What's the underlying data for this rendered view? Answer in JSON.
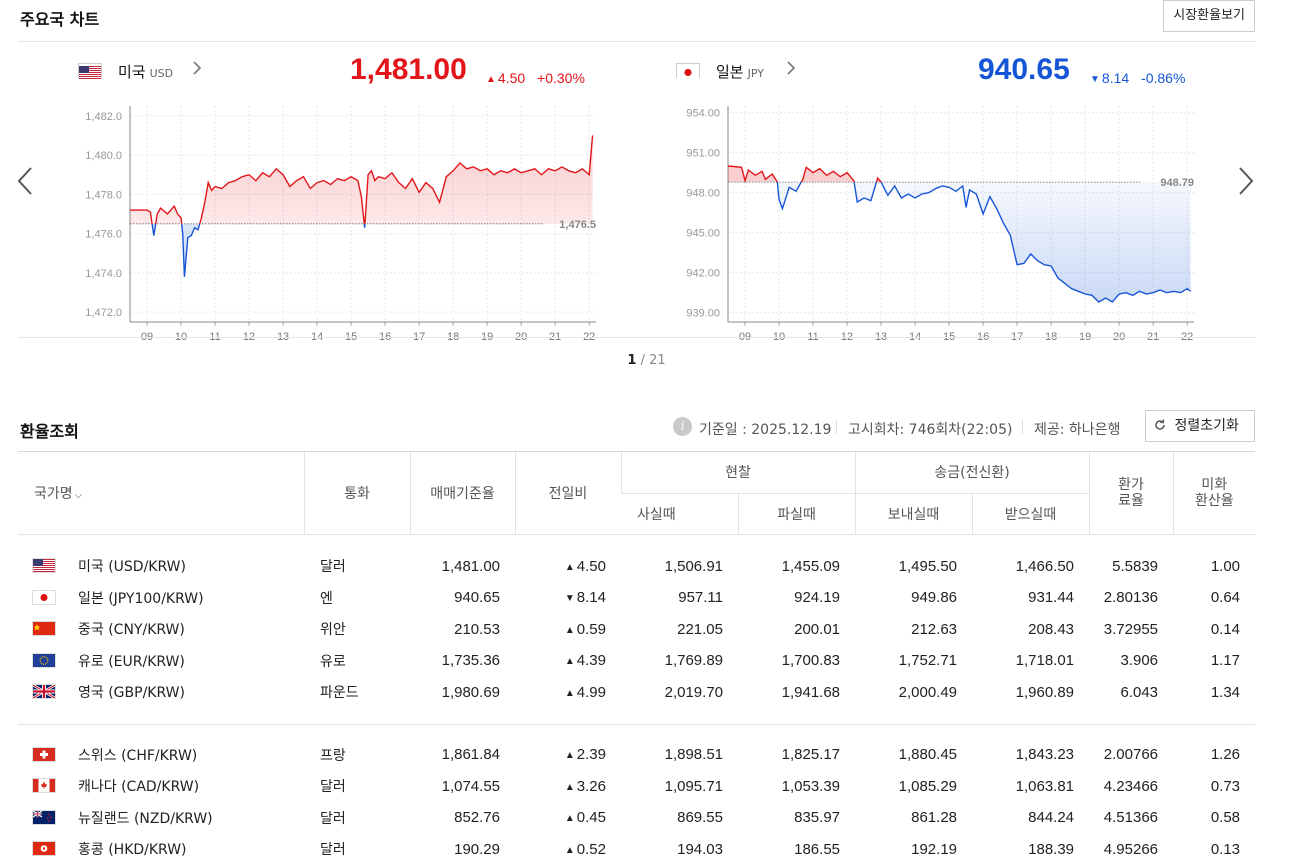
{
  "colors": {
    "up": "#e2161a",
    "down": "#1656d6",
    "grid": "#e9e9e9"
  },
  "chart_section": {
    "title": "주요국 차트",
    "market_button": "시장환율보기",
    "prev_arrow": "prev-arrow-icon",
    "next_arrow": "next-arrow-icon",
    "pager": {
      "current": "1",
      "total": "/ 21"
    }
  },
  "chart_data": [
    {
      "type": "line",
      "name": "미국",
      "code": "USD",
      "price": "1,481.00",
      "change": "4.50",
      "change_pct": "+0.30%",
      "direction": "up",
      "baseline": 1476.5,
      "baseline_label": "1,476.5",
      "ylim": [
        1471.5,
        1482.5
      ],
      "yticks": [
        1472.0,
        1474.0,
        1476.0,
        1478.0,
        1480.0,
        1482.0
      ],
      "ytick_labels": [
        "1,472.0",
        "1,474.0",
        "1,476.0",
        "1,478.0",
        "1,480.0",
        "1,482.0"
      ],
      "xlim": [
        8.5,
        22.2
      ],
      "xticks": [
        9,
        10,
        11,
        12,
        13,
        14,
        15,
        16,
        17,
        18,
        19,
        20,
        21,
        22
      ],
      "xtick_labels": [
        "09",
        "10",
        "11",
        "12",
        "13",
        "14",
        "15",
        "16",
        "17",
        "18",
        "19",
        "20",
        "21",
        "22"
      ],
      "x": [
        8.5,
        9.0,
        9.1,
        9.2,
        9.3,
        9.4,
        9.6,
        9.8,
        9.9,
        10.0,
        10.05,
        10.1,
        10.2,
        10.3,
        10.4,
        10.5,
        10.6,
        10.7,
        10.8,
        10.9,
        11.0,
        11.2,
        11.4,
        11.6,
        11.8,
        12.0,
        12.2,
        12.4,
        12.6,
        12.8,
        13.0,
        13.2,
        13.4,
        13.6,
        13.8,
        14.0,
        14.2,
        14.4,
        14.6,
        14.8,
        15.0,
        15.2,
        15.3,
        15.4,
        15.5,
        15.6,
        15.7,
        15.8,
        16.0,
        16.2,
        16.4,
        16.6,
        16.8,
        17.0,
        17.2,
        17.4,
        17.6,
        17.8,
        18.0,
        18.2,
        18.4,
        18.6,
        18.8,
        19.0,
        19.2,
        19.4,
        19.6,
        19.8,
        20.0,
        20.2,
        20.4,
        20.6,
        20.8,
        21.0,
        21.2,
        21.4,
        21.6,
        21.8,
        22.0,
        22.1
      ],
      "y": [
        1477.2,
        1477.2,
        1477.1,
        1475.9,
        1477.0,
        1477.3,
        1477.0,
        1477.4,
        1477.0,
        1476.8,
        1476.0,
        1473.8,
        1475.8,
        1475.9,
        1476.3,
        1476.2,
        1476.8,
        1477.6,
        1478.6,
        1478.2,
        1478.4,
        1478.3,
        1478.6,
        1478.7,
        1478.9,
        1479.0,
        1478.7,
        1479.1,
        1478.9,
        1479.3,
        1479.0,
        1478.4,
        1478.7,
        1478.9,
        1478.3,
        1478.6,
        1478.7,
        1478.5,
        1478.8,
        1478.7,
        1478.9,
        1478.7,
        1477.9,
        1476.3,
        1479.0,
        1479.2,
        1478.7,
        1478.9,
        1478.8,
        1479.1,
        1478.6,
        1478.3,
        1478.8,
        1478.1,
        1478.6,
        1478.3,
        1477.6,
        1478.9,
        1479.2,
        1479.6,
        1479.3,
        1479.4,
        1479.2,
        1479.3,
        1479.0,
        1479.2,
        1479.1,
        1479.3,
        1479.1,
        1479.2,
        1479.3,
        1479.0,
        1479.3,
        1479.2,
        1479.4,
        1479.2,
        1479.1,
        1479.3,
        1479.0,
        1481.0
      ]
    },
    {
      "type": "line",
      "name": "일본",
      "code": "JPY",
      "price": "940.65",
      "change": "8.14",
      "change_pct": "-0.86%",
      "direction": "down",
      "baseline": 948.79,
      "baseline_label": "948.79",
      "ylim": [
        938.3,
        954.5
      ],
      "yticks": [
        939.0,
        942.0,
        945.0,
        948.0,
        951.0,
        954.0
      ],
      "ytick_labels": [
        "939.00",
        "942.00",
        "945.00",
        "948.00",
        "951.00",
        "954.00"
      ],
      "xlim": [
        8.5,
        22.2
      ],
      "xticks": [
        9,
        10,
        11,
        12,
        13,
        14,
        15,
        16,
        17,
        18,
        19,
        20,
        21,
        22
      ],
      "xtick_labels": [
        "09",
        "10",
        "11",
        "12",
        "13",
        "14",
        "15",
        "16",
        "17",
        "18",
        "19",
        "20",
        "21",
        "22"
      ],
      "x": [
        8.5,
        8.9,
        9.0,
        9.1,
        9.3,
        9.5,
        9.6,
        9.8,
        9.95,
        10.0,
        10.1,
        10.3,
        10.5,
        10.7,
        10.8,
        11.0,
        11.2,
        11.4,
        11.6,
        11.8,
        12.0,
        12.2,
        12.3,
        12.5,
        12.7,
        12.9,
        13.0,
        13.2,
        13.4,
        13.6,
        13.8,
        14.0,
        14.2,
        14.4,
        14.6,
        14.8,
        15.0,
        15.2,
        15.4,
        15.5,
        15.6,
        15.8,
        16.0,
        16.2,
        16.4,
        16.6,
        16.8,
        17.0,
        17.2,
        17.4,
        17.6,
        17.8,
        18.0,
        18.2,
        18.4,
        18.6,
        18.8,
        19.0,
        19.2,
        19.4,
        19.6,
        19.8,
        20.0,
        20.2,
        20.4,
        20.6,
        20.8,
        21.0,
        21.2,
        21.4,
        21.6,
        21.8,
        22.0,
        22.1
      ],
      "y": [
        950.0,
        949.9,
        948.9,
        949.7,
        949.3,
        949.6,
        949.0,
        949.4,
        948.8,
        947.5,
        946.8,
        948.4,
        948.1,
        949.0,
        949.9,
        949.5,
        949.8,
        949.3,
        949.6,
        949.2,
        949.5,
        948.9,
        947.3,
        947.6,
        947.4,
        949.1,
        948.8,
        947.8,
        948.5,
        947.6,
        947.9,
        947.6,
        947.9,
        948.0,
        948.3,
        948.5,
        948.4,
        948.1,
        948.5,
        946.9,
        948.2,
        947.9,
        946.4,
        947.7,
        946.8,
        945.7,
        944.8,
        942.6,
        942.7,
        943.4,
        942.9,
        942.6,
        942.5,
        941.6,
        941.2,
        940.8,
        940.6,
        940.4,
        940.3,
        939.8,
        940.1,
        939.8,
        940.4,
        940.5,
        940.3,
        940.6,
        940.4,
        940.5,
        940.7,
        940.5,
        940.6,
        940.5,
        940.8,
        940.6
      ]
    }
  ],
  "rate_section": {
    "title": "환율조회",
    "info_icon": "info-icon",
    "base_date": "기준일 : 2025.12.19",
    "notice": "고시회차: 746회차(22:05)",
    "provider": "제공: 하나은행",
    "reset_label": "정렬초기화",
    "reset_icon": "refresh-icon",
    "headers": {
      "country": "국가명",
      "currency": "통화",
      "base_rate": "매매기준율",
      "change": "전일비",
      "cash": "현찰",
      "cash_buy": "사실때",
      "cash_sell": "파실때",
      "wire": "송금(전신환)",
      "wire_send": "보내실때",
      "wire_receive": "받으실때",
      "exchange_fee": "환가\n료율",
      "usd_rate": "미화\n환산율"
    },
    "rows": [
      {
        "flag": "us",
        "name": "미국 (USD/KRW)",
        "unit": "달러",
        "base": "1,481.00",
        "change": "4.50",
        "dir": "up",
        "cash_buy": "1,506.91",
        "cash_sell": "1,455.09",
        "send": "1,495.50",
        "receive": "1,466.50",
        "fee": "5.5839",
        "usd": "1.00"
      },
      {
        "flag": "jp",
        "name": "일본 (JPY100/KRW)",
        "unit": "엔",
        "base": "940.65",
        "change": "8.14",
        "dir": "down",
        "cash_buy": "957.11",
        "cash_sell": "924.19",
        "send": "949.86",
        "receive": "931.44",
        "fee": "2.80136",
        "usd": "0.64"
      },
      {
        "flag": "cn",
        "name": "중국 (CNY/KRW)",
        "unit": "위안",
        "base": "210.53",
        "change": "0.59",
        "dir": "up",
        "cash_buy": "221.05",
        "cash_sell": "200.01",
        "send": "212.63",
        "receive": "208.43",
        "fee": "3.72955",
        "usd": "0.14"
      },
      {
        "flag": "eu",
        "name": "유로 (EUR/KRW)",
        "unit": "유로",
        "base": "1,735.36",
        "change": "4.39",
        "dir": "up",
        "cash_buy": "1,769.89",
        "cash_sell": "1,700.83",
        "send": "1,752.71",
        "receive": "1,718.01",
        "fee": "3.906",
        "usd": "1.17"
      },
      {
        "flag": "gb",
        "name": "영국 (GBP/KRW)",
        "unit": "파운드",
        "base": "1,980.69",
        "change": "4.99",
        "dir": "up",
        "cash_buy": "2,019.70",
        "cash_sell": "1,941.68",
        "send": "2,000.49",
        "receive": "1,960.89",
        "fee": "6.043",
        "usd": "1.34"
      },
      {
        "flag": "ch",
        "name": "스위스 (CHF/KRW)",
        "unit": "프랑",
        "base": "1,861.84",
        "change": "2.39",
        "dir": "up",
        "cash_buy": "1,898.51",
        "cash_sell": "1,825.17",
        "send": "1,880.45",
        "receive": "1,843.23",
        "fee": "2.00766",
        "usd": "1.26"
      },
      {
        "flag": "ca",
        "name": "캐나다 (CAD/KRW)",
        "unit": "달러",
        "base": "1,074.55",
        "change": "3.26",
        "dir": "up",
        "cash_buy": "1,095.71",
        "cash_sell": "1,053.39",
        "send": "1,085.29",
        "receive": "1,063.81",
        "fee": "4.23466",
        "usd": "0.73"
      },
      {
        "flag": "nz",
        "name": "뉴질랜드 (NZD/KRW)",
        "unit": "달러",
        "base": "852.76",
        "change": "0.45",
        "dir": "up",
        "cash_buy": "869.55",
        "cash_sell": "835.97",
        "send": "861.28",
        "receive": "844.24",
        "fee": "4.51366",
        "usd": "0.58"
      },
      {
        "flag": "hk",
        "name": "홍콩 (HKD/KRW)",
        "unit": "달러",
        "base": "190.29",
        "change": "0.52",
        "dir": "up",
        "cash_buy": "194.03",
        "cash_sell": "186.55",
        "send": "192.19",
        "receive": "188.39",
        "fee": "4.95266",
        "usd": "0.13"
      }
    ]
  }
}
